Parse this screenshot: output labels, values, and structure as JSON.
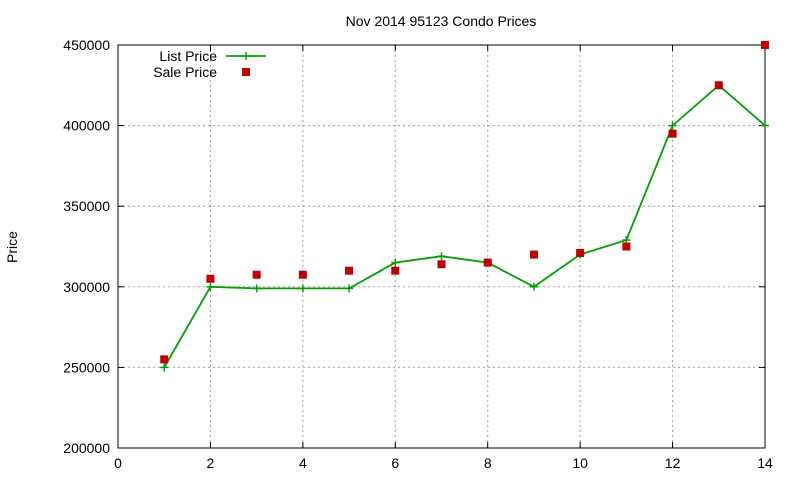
{
  "chart_data": {
    "type": "line",
    "title": "Nov 2014 95123 Condo Prices",
    "ylabel": "Price",
    "xlabel": "",
    "xlim": [
      0,
      14
    ],
    "ylim": [
      200000,
      450000
    ],
    "xticks": [
      0,
      2,
      4,
      6,
      8,
      10,
      12,
      14
    ],
    "yticks": [
      200000,
      250000,
      300000,
      350000,
      400000,
      450000
    ],
    "grid": true,
    "legend_position": "top-left",
    "series": [
      {
        "name": "List Price",
        "style": "line-plus",
        "color": "#00a000",
        "x": [
          1,
          2,
          3,
          4,
          5,
          6,
          7,
          8,
          9,
          10,
          11,
          12,
          13,
          14
        ],
        "values": [
          250000,
          300000,
          299000,
          299000,
          299000,
          315000,
          319000,
          315000,
          300000,
          320000,
          329000,
          400000,
          425000,
          400000
        ]
      },
      {
        "name": "Sale Price",
        "style": "square-markers",
        "color": "#c00000",
        "x": [
          1,
          2,
          3,
          4,
          5,
          6,
          7,
          8,
          9,
          10,
          11,
          12,
          13,
          14
        ],
        "values": [
          255000,
          305000,
          307500,
          307500,
          310000,
          310000,
          314000,
          315000,
          320000,
          321000,
          325000,
          395000,
          425000,
          450000
        ]
      }
    ]
  }
}
